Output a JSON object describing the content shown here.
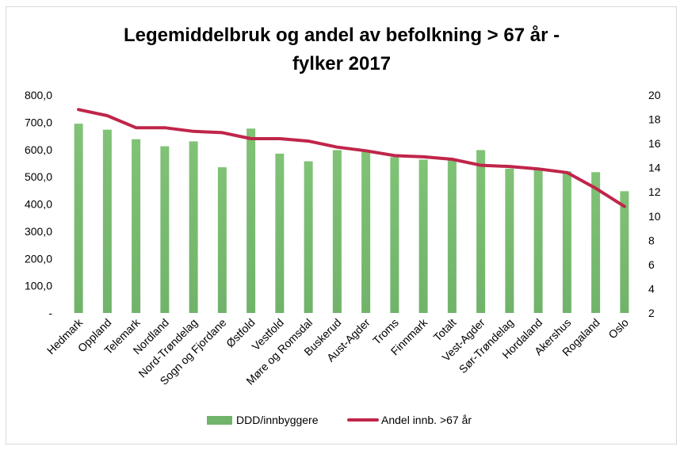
{
  "chart_data": {
    "type": "bar+line",
    "title_lines": [
      "Legemiddelbruk og andel av befolkning > 67 år -",
      "fylker 2017"
    ],
    "categories": [
      "Hedmark",
      "Oppland",
      "Telemark",
      "Nordland",
      "Nord-Trøndelag",
      "Sogn og Fjordane",
      "Østfold",
      "Vestfold",
      "Møre og Romsdal",
      "Buskerud",
      "Aust-Agder",
      "Troms",
      "Finnmark",
      "Totalt",
      "Vest-Agder",
      "Sør-Trøndelag",
      "Hordaland",
      "Akershus",
      "Rogaland",
      "Oslo"
    ],
    "series": [
      {
        "name": "DDD/innbyggere",
        "type": "bar",
        "axis": "left",
        "color": "#70b36a",
        "values": [
          695,
          673,
          638,
          612,
          630,
          535,
          677,
          585,
          557,
          598,
          598,
          572,
          563,
          560,
          598,
          530,
          525,
          520,
          517,
          447
        ]
      },
      {
        "name": "Andel innb. >67 år",
        "type": "line",
        "axis": "right",
        "color": "#c0254a",
        "values": [
          18.8,
          18.3,
          17.3,
          17.3,
          17.0,
          16.9,
          16.4,
          16.4,
          16.2,
          15.7,
          15.4,
          15.0,
          14.9,
          14.7,
          14.2,
          14.1,
          13.9,
          13.6,
          12.3,
          10.8
        ]
      }
    ],
    "y_left": {
      "min": 0,
      "max": 800,
      "step": 100,
      "tick_labels": [
        "-",
        "100,0",
        "200,0",
        "300,0",
        "400,0",
        "500,0",
        "600,0",
        "700,0",
        "800,0"
      ]
    },
    "y_right": {
      "min": 2,
      "max": 20,
      "step": 2,
      "tick_labels": [
        "2",
        "4",
        "6",
        "8",
        "10",
        "12",
        "14",
        "16",
        "18",
        "20"
      ]
    },
    "grid": false,
    "legend_position": "bottom"
  }
}
